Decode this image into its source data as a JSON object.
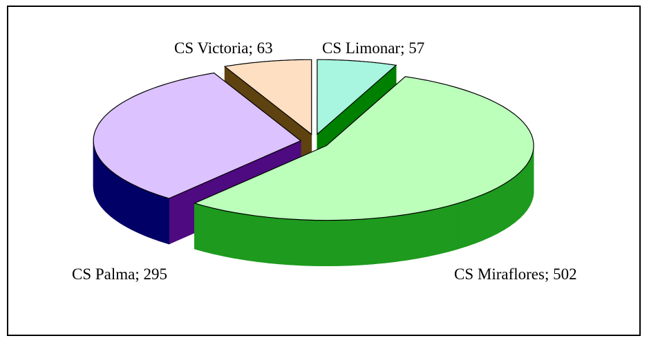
{
  "chart_data": {
    "type": "pie",
    "style": "3d-exploded",
    "title": "",
    "legend": "none",
    "slices": [
      {
        "name": "CS Limonar",
        "value": 57,
        "label": "CS Limonar; 57",
        "top_color": "#A8F5E0",
        "side_color": "#008000"
      },
      {
        "name": "CS Miraflores",
        "value": 502,
        "label": "CS Miraflores; 502",
        "top_color": "#BBFFBB",
        "side_color": "#1E9A1E"
      },
      {
        "name": "CS Palma",
        "value": 295,
        "label": "CS Palma; 295",
        "top_color": "#DCC2FF",
        "side_color": "#4E0A80",
        "side_color_outer": "#000066"
      },
      {
        "name": "CS Victoria",
        "value": 63,
        "label": "CS Victoria; 63",
        "top_color": "#FFDFC2",
        "side_color": "#5E4210"
      }
    ]
  }
}
